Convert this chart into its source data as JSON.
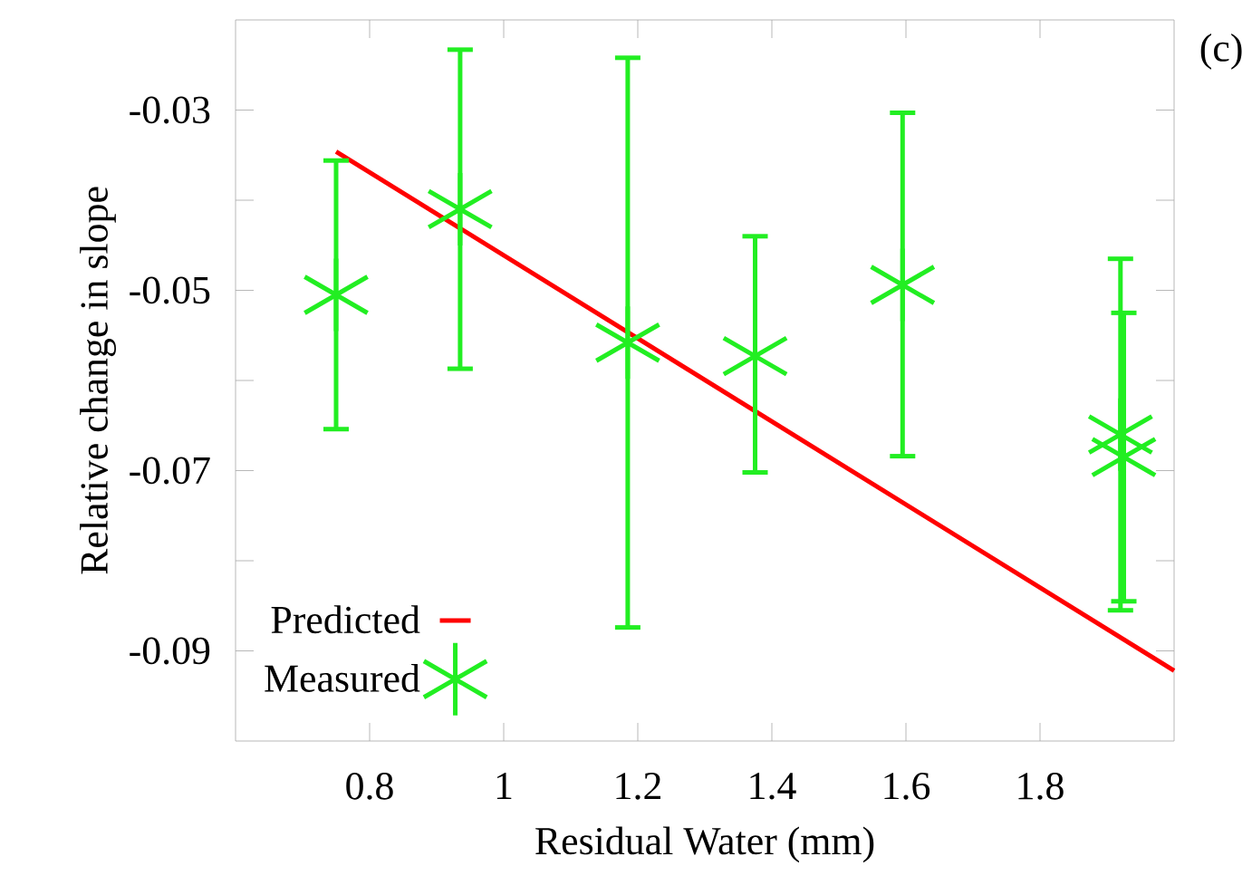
{
  "chart_data": {
    "type": "scatter",
    "xlabel": "Residual Water (mm)",
    "ylabel": "Relative change in slope",
    "annotations": [
      "(c)"
    ],
    "xlim": [
      0.6,
      2.0
    ],
    "ylim": [
      -0.1,
      -0.02
    ],
    "xticks": [
      0.8,
      1,
      1.2,
      1.4,
      1.6,
      1.8
    ],
    "yticks": [
      {
        "value": -0.09,
        "label": "-0.09"
      },
      {
        "value": -0.08,
        "label": null
      },
      {
        "value": -0.07,
        "label": "-0.07"
      },
      {
        "value": -0.06,
        "label": null
      },
      {
        "value": -0.05,
        "label": "-0.05"
      },
      {
        "value": -0.04,
        "label": null
      },
      {
        "value": -0.03,
        "label": "-0.03"
      }
    ],
    "legend": "bottom left",
    "grid": false,
    "series": [
      {
        "name": "Predicted",
        "type": "line",
        "color": "#ff0000",
        "x": [
          0.75,
          2.0
        ],
        "values": [
          -0.0346,
          -0.0922
        ]
      },
      {
        "name": "Measured",
        "marker": "cross",
        "color": "#22ee22",
        "x": [
          0.75,
          0.935,
          1.185,
          1.375,
          1.595,
          1.92,
          1.925
        ],
        "values": [
          -0.0505,
          -0.041,
          -0.0558,
          -0.0573,
          -0.0494,
          -0.066,
          -0.0685
        ],
        "errors": [
          [
            -0.0654,
            -0.0356
          ],
          [
            -0.0587,
            -0.0233
          ],
          [
            -0.0874,
            -0.0242
          ],
          [
            -0.0702,
            -0.044
          ],
          [
            -0.0684,
            -0.0303
          ],
          [
            -0.0855,
            -0.0465
          ],
          [
            -0.0845,
            -0.0525
          ]
        ]
      }
    ]
  }
}
